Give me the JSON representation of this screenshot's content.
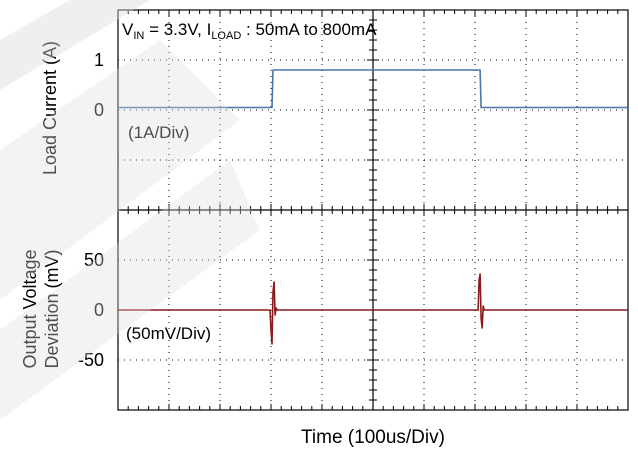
{
  "chart_data": {
    "type": "line",
    "title_parts": {
      "v": "V",
      "v_sub": "IN",
      "v_value": " = 3.3V, I",
      "i_sub": "LOAD",
      "i_value": " : 50mA to 800mA"
    },
    "xlabel": "Time  (100us/Div)",
    "x_unit": "us",
    "x_divisions": 10,
    "x_per_div": 100,
    "xlim": [
      0,
      1000
    ],
    "colors": {
      "load": "#4a76a8",
      "output": "#8b1a1a",
      "grid": "#000000",
      "watermark": "#d0d0d0"
    },
    "panels": [
      {
        "id": "load",
        "ylabel": "Load Current (A)",
        "scale_label": "(1A/Div)",
        "unit": "A",
        "ylim": [
          -2,
          2
        ],
        "yticks": [
          {
            "value": 1,
            "label": "1"
          },
          {
            "value": 0,
            "label": "0"
          }
        ],
        "series": {
          "x": [
            0,
            302,
            304,
            710,
            712,
            1000
          ],
          "y": [
            0.05,
            0.05,
            0.8,
            0.8,
            0.05,
            0.05
          ]
        }
      },
      {
        "id": "output",
        "ylabel_lines": [
          "Output Voltage",
          "Deviation  (mV)"
        ],
        "scale_label": "(50mV/Div)",
        "unit": "mV",
        "ylim": [
          -100,
          100
        ],
        "yticks": [
          {
            "value": 50,
            "label": "50"
          },
          {
            "value": 0,
            "label": "0"
          },
          {
            "value": -50,
            "label": "-50"
          }
        ],
        "series": {
          "x": [
            0,
            298,
            300,
            302,
            304,
            306,
            308,
            310,
            312,
            314,
            706,
            708,
            710,
            712,
            714,
            716,
            718,
            1000
          ],
          "y": [
            0,
            0,
            -20,
            -34,
            18,
            28,
            -5,
            2,
            0,
            0,
            0,
            30,
            36,
            -8,
            -18,
            4,
            0,
            0
          ]
        }
      }
    ]
  }
}
